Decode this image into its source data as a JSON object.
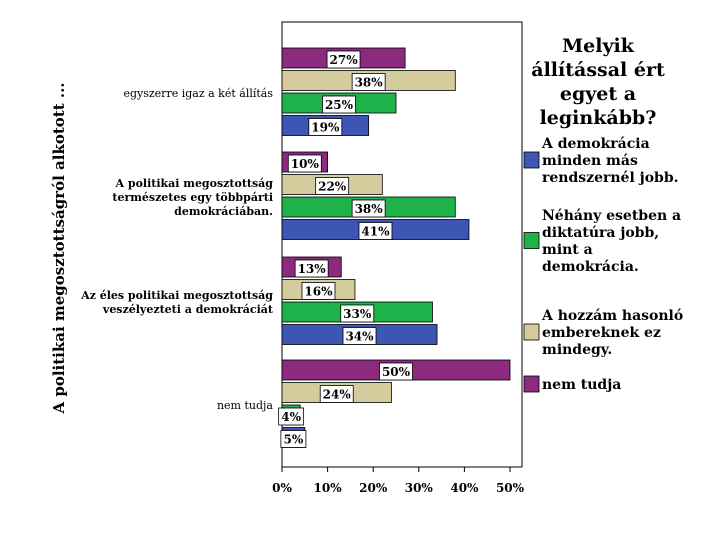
{
  "chart_data": {
    "type": "bar",
    "orientation": "horizontal",
    "title": "Melyik állítással ért egyet a leginkább?",
    "title_lines": [
      "Melyik",
      "állítással ért",
      "egyet a",
      "leginkább?"
    ],
    "ylabel": "A politikai megosztottságról alkotott ...",
    "xlabel": "",
    "xlim": [
      0,
      50
    ],
    "xticks": [
      "0%",
      "10%",
      "20%",
      "30%",
      "40%",
      "50%"
    ],
    "categories": [
      {
        "lines": [
          "egyszerre igaz a két állítás"
        ],
        "bold": false
      },
      {
        "lines": [
          "A politikai megosztottság",
          "természetes egy többpárti",
          "demokráciában."
        ],
        "bold": true
      },
      {
        "lines": [
          "Az éles politikai megosztottság",
          "veszélyezteti a demokráciát"
        ],
        "bold": true
      },
      {
        "lines": [
          "nem tudja"
        ],
        "bold": false
      }
    ],
    "series": [
      {
        "name": "nem tudja",
        "legend_lines": [
          "nem tudja"
        ],
        "color": "#8b2a7e",
        "values": [
          27,
          10,
          13,
          50
        ]
      },
      {
        "name": "A hozzám hasonló embereknek ez mindegy.",
        "legend_lines": [
          "A hozzám hasonló",
          "embereknek ez",
          "mindegy."
        ],
        "color": "#d4cc9c",
        "values": [
          38,
          22,
          16,
          24
        ]
      },
      {
        "name": "Néhány esetben a diktatúra jobb, mint a demokrácia.",
        "legend_lines": [
          "Néhány esetben a",
          "diktatúra jobb,",
          "mint a",
          "demokrácia."
        ],
        "color": "#1fb14a",
        "values": [
          25,
          38,
          33,
          4
        ]
      },
      {
        "name": "A demokrácia minden más rendszernél jobb.",
        "legend_lines": [
          "A demokrácia",
          "minden más",
          "rendszernél jobb."
        ],
        "color": "#3d55b3",
        "values": [
          19,
          41,
          34,
          5
        ]
      }
    ],
    "legend_order": [
      3,
      2,
      1,
      0
    ],
    "data_labels": [
      [
        "27%",
        "10%",
        "13%",
        "50%"
      ],
      [
        "38%",
        "22%",
        "16%",
        "24%"
      ],
      [
        "25%",
        "38%",
        "33%",
        "4%"
      ],
      [
        "19%",
        "41%",
        "34%",
        "5%"
      ]
    ],
    "legend_position": "right",
    "grid": false
  }
}
